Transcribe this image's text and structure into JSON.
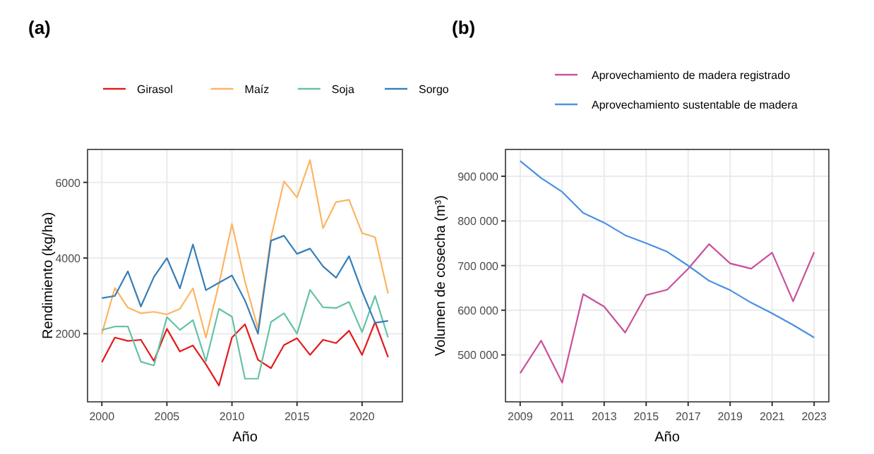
{
  "chart_data": [
    {
      "type": "line",
      "title": "(a)",
      "xlabel": "Año",
      "ylabel": "Rendimiento (kg/ha)",
      "legend": "top",
      "grid": true,
      "x": [
        2000,
        2001,
        2002,
        2003,
        2004,
        2005,
        2006,
        2007,
        2008,
        2009,
        2010,
        2011,
        2012,
        2013,
        2014,
        2015,
        2016,
        2017,
        2018,
        2019,
        2020,
        2021,
        2022
      ],
      "xlim": [
        1998.9,
        2023.1
      ],
      "xticks": [
        2000,
        2005,
        2010,
        2015,
        2020
      ],
      "ylim": [
        200,
        6870
      ],
      "yticks": [
        2000,
        4000,
        6000
      ],
      "series": [
        {
          "name": "Girasol",
          "color": "#e41a1c",
          "values": [
            1250,
            1900,
            1810,
            1840,
            1280,
            2130,
            1530,
            1690,
            1190,
            630,
            1900,
            2250,
            1310,
            1090,
            1700,
            1880,
            1440,
            1840,
            1750,
            2080,
            1440,
            2310,
            1380
          ]
        },
        {
          "name": "Maíz",
          "color": "#fdb462",
          "values": [
            2000,
            3210,
            2690,
            2540,
            2580,
            2510,
            2660,
            3200,
            1900,
            3310,
            4900,
            3380,
            2130,
            4540,
            6030,
            5600,
            6590,
            4790,
            5480,
            5540,
            4660,
            4550,
            3060
          ]
        },
        {
          "name": "Soja",
          "color": "#66c2a5",
          "values": [
            2100,
            2190,
            2190,
            1260,
            1160,
            2440,
            2100,
            2360,
            1270,
            2660,
            2450,
            810,
            810,
            2310,
            2540,
            2000,
            3160,
            2700,
            2680,
            2840,
            2040,
            3000,
            1900
          ]
        },
        {
          "name": "Sorgo",
          "color": "#377eb8",
          "values": [
            2940,
            3000,
            3650,
            2720,
            3500,
            4000,
            3200,
            4360,
            3150,
            3350,
            3540,
            2880,
            2000,
            4460,
            4590,
            4110,
            4250,
            3780,
            3480,
            4050,
            3120,
            2290,
            2340
          ]
        }
      ]
    },
    {
      "type": "line",
      "title": "(b)",
      "xlabel": "Año",
      "ylabel": "Volumen de cosecha (m³)",
      "legend": "top",
      "grid": true,
      "x": [
        2009,
        2010,
        2011,
        2012,
        2013,
        2014,
        2015,
        2016,
        2017,
        2018,
        2019,
        2020,
        2021,
        2022,
        2023
      ],
      "xlim": [
        2008.3,
        2023.7
      ],
      "xticks": [
        2009,
        2011,
        2013,
        2015,
        2017,
        2019,
        2021,
        2023
      ],
      "ylim": [
        395000,
        960000
      ],
      "yticks": [
        {
          "value": 500000,
          "label": "500 000"
        },
        {
          "value": 600000,
          "label": "600 000"
        },
        {
          "value": 700000,
          "label": "700 000"
        },
        {
          "value": 800000,
          "label": "800 000"
        },
        {
          "value": 900000,
          "label": "900 000"
        }
      ],
      "series": [
        {
          "name": "Aprovechamiento de madera registrado",
          "color": "#c9509a",
          "values": [
            459000,
            532000,
            438000,
            636000,
            608000,
            550000,
            634000,
            646000,
            693000,
            748000,
            705000,
            693000,
            729000,
            620000,
            730000
          ]
        },
        {
          "name": "Aprovechamiento sustentable de madera",
          "color": "#4a90e2",
          "values": [
            934000,
            896000,
            865000,
            818000,
            796000,
            768000,
            750000,
            731000,
            700000,
            666000,
            645000,
            617000,
            593000,
            567000,
            539000
          ]
        }
      ]
    }
  ]
}
